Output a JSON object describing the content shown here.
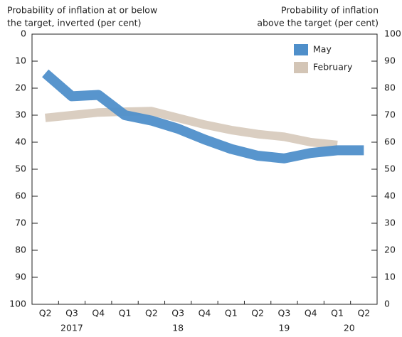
{
  "chart_data": {
    "type": "line",
    "left_axis_title": [
      "Probability of inflation at or below",
      "the target, inverted (per cent)"
    ],
    "right_axis_title": [
      "Probability of inflation",
      "above the target (per cent)"
    ],
    "categories": [
      "Q2",
      "Q3",
      "Q4",
      "Q1",
      "Q2",
      "Q3",
      "Q4",
      "Q1",
      "Q2",
      "Q3",
      "Q4",
      "Q1",
      "Q2"
    ],
    "year_labels": [
      null,
      "2017",
      null,
      null,
      null,
      "18",
      null,
      null,
      null,
      "19",
      null,
      "20",
      null
    ],
    "series": [
      {
        "name": "May",
        "color": "#4f8fca",
        "values": [
          14.5,
          23,
          22.5,
          30,
          32,
          35,
          39,
          42.5,
          45,
          46,
          44,
          43,
          43
        ]
      },
      {
        "name": "February",
        "color": "#d3c5b6",
        "values": [
          31,
          30,
          29,
          28.7,
          28.5,
          31,
          33.5,
          35.5,
          37,
          38,
          40,
          41,
          null
        ]
      }
    ],
    "ylim": [
      100,
      0
    ],
    "yticks": [
      0,
      10,
      20,
      30,
      40,
      50,
      60,
      70,
      80,
      90,
      100
    ],
    "y2lim": [
      0,
      100
    ],
    "y2ticks": [
      0,
      10,
      20,
      30,
      40,
      50,
      60,
      70,
      80,
      90,
      100
    ],
    "legend": "top-right"
  }
}
